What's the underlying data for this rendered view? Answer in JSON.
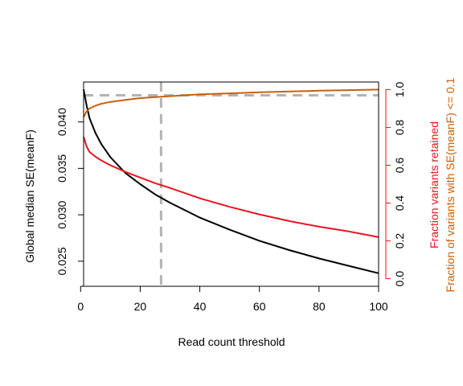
{
  "chart_data": {
    "type": "line",
    "xlabel": "Read count threshold",
    "ylabel_left": "Global median SE(meanF)",
    "ylabel_right_1": "Fraction variants retained",
    "ylabel_right_2": "Fraction of variants with SE(meanF) <= 0.1",
    "xlim": [
      1,
      100
    ],
    "ylim_left": [
      0.0223,
      0.0443
    ],
    "ylim_right": [
      -0.04,
      1.04
    ],
    "x_ticks": [
      0,
      20,
      40,
      60,
      80,
      100
    ],
    "y_left_ticks": [
      0.025,
      0.03,
      0.035,
      0.04
    ],
    "y_left_tick_labels": [
      "0.025",
      "0.030",
      "0.035",
      "0.040"
    ],
    "y_right_ticks": [
      0.0,
      0.2,
      0.4,
      0.6,
      0.8,
      1.0
    ],
    "y_right_tick_labels": [
      "0.0",
      "0.2",
      "0.4",
      "0.6",
      "0.8",
      "1.0"
    ],
    "reference_lines": {
      "vertical_x": 27,
      "horizontal_right_y": 0.97
    },
    "colors": {
      "median_se": "#000000",
      "fraction_retained": "#e8141e",
      "fraction_se_ok": "#c8600c",
      "reference": "#b3b3b3",
      "right_axis": "#e8141e"
    },
    "series": [
      {
        "key": "median_se",
        "axis": "left",
        "x": [
          1,
          2,
          3,
          5,
          7,
          10,
          15,
          20,
          25,
          30,
          40,
          50,
          60,
          70,
          80,
          90,
          100
        ],
        "values": [
          0.0435,
          0.0418,
          0.0404,
          0.0388,
          0.0376,
          0.0362,
          0.0345,
          0.0333,
          0.0322,
          0.0313,
          0.0297,
          0.0284,
          0.0272,
          0.0262,
          0.0253,
          0.0245,
          0.0237
        ]
      },
      {
        "key": "fraction_retained",
        "axis": "right",
        "x": [
          1,
          2,
          3,
          5,
          7,
          10,
          15,
          20,
          25,
          30,
          40,
          50,
          60,
          70,
          80,
          90,
          100
        ],
        "values": [
          0.75,
          0.7,
          0.67,
          0.645,
          0.625,
          0.6,
          0.565,
          0.535,
          0.505,
          0.48,
          0.425,
          0.38,
          0.34,
          0.305,
          0.275,
          0.25,
          0.22
        ]
      },
      {
        "key": "fraction_se_ok",
        "axis": "right",
        "x": [
          1,
          2,
          3,
          5,
          7,
          10,
          15,
          20,
          25,
          30,
          40,
          50,
          60,
          70,
          80,
          90,
          100
        ],
        "values": [
          0.855,
          0.885,
          0.9,
          0.915,
          0.925,
          0.935,
          0.945,
          0.955,
          0.96,
          0.965,
          0.975,
          0.98,
          0.986,
          0.99,
          0.994,
          0.997,
          1.0
        ]
      }
    ]
  }
}
